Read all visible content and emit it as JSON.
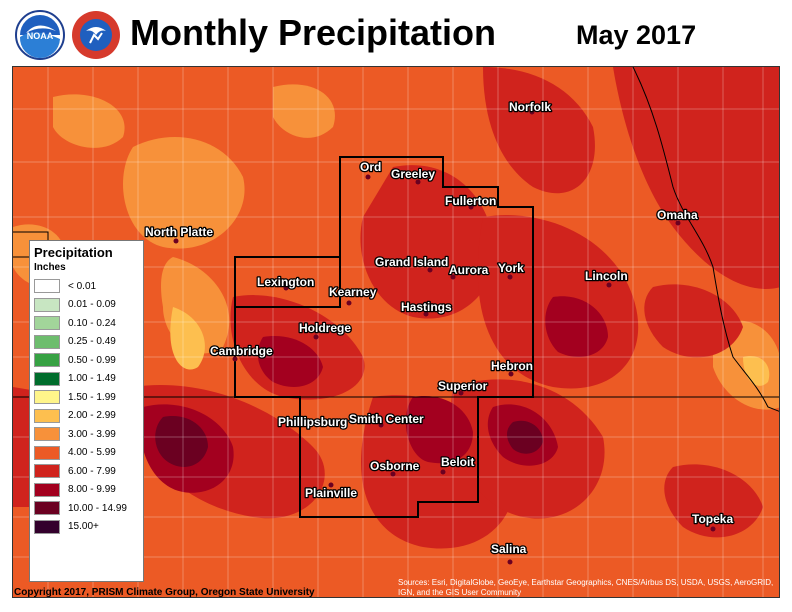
{
  "header": {
    "title": "Monthly Precipitation",
    "month": "May 2017",
    "logos": [
      {
        "name": "noaa-logo-icon",
        "text": "NOAA"
      },
      {
        "name": "nws-logo-icon",
        "text": "NATIONAL WEATHER SERVICE"
      }
    ]
  },
  "legend": {
    "title": "Precipitation",
    "units": "Inches",
    "items": [
      {
        "label": "< 0.01",
        "color": "#ffffff"
      },
      {
        "label": "0.01 - 0.09",
        "color": "#c8e6c2"
      },
      {
        "label": "0.10 - 0.24",
        "color": "#a2d59a"
      },
      {
        "label": "0.25 - 0.49",
        "color": "#6dbd6d"
      },
      {
        "label": "0.50 - 0.99",
        "color": "#37a243"
      },
      {
        "label": "1.00 - 1.49",
        "color": "#006d2c"
      },
      {
        "label": "1.50 - 1.99",
        "color": "#fff58a"
      },
      {
        "label": "2.00 - 2.99",
        "color": "#fdbf4f"
      },
      {
        "label": "3.00 - 3.99",
        "color": "#f7913a"
      },
      {
        "label": "4.00 - 5.99",
        "color": "#ec5a25"
      },
      {
        "label": "6.00 - 7.99",
        "color": "#d0231d"
      },
      {
        "label": "8.00 - 9.99",
        "color": "#a3001f"
      },
      {
        "label": "10.00 - 14.99",
        "color": "#6b0021"
      },
      {
        "label": "15.00+",
        "color": "#33002c"
      }
    ]
  },
  "cities": [
    {
      "name": "Norfolk"
    },
    {
      "name": "Ord"
    },
    {
      "name": "Greeley"
    },
    {
      "name": "Fullerton"
    },
    {
      "name": "North Platte"
    },
    {
      "name": "Omaha"
    },
    {
      "name": "Grand Island"
    },
    {
      "name": "Aurora"
    },
    {
      "name": "York"
    },
    {
      "name": "Lexington"
    },
    {
      "name": "Kearney"
    },
    {
      "name": "Lincoln"
    },
    {
      "name": "Hastings"
    },
    {
      "name": "Holdrege"
    },
    {
      "name": "Cambridge"
    },
    {
      "name": "Hebron"
    },
    {
      "name": "Superior"
    },
    {
      "name": "Phillipsburg"
    },
    {
      "name": "Smith Center"
    },
    {
      "name": "Beloit"
    },
    {
      "name": "Osborne"
    },
    {
      "name": "Plainville"
    },
    {
      "name": "Topeka"
    },
    {
      "name": "Salina"
    }
  ],
  "footer": {
    "copyright": "Copyright 2017, PRISM Climate Group, Oregon State University",
    "source": "Sources: Esri, DigitalGlobe, GeoEye, Earthstar Geographics, CNES/Airbus DS, USDA, USGS, AeroGRID, IGN, and the GIS User Community"
  }
}
